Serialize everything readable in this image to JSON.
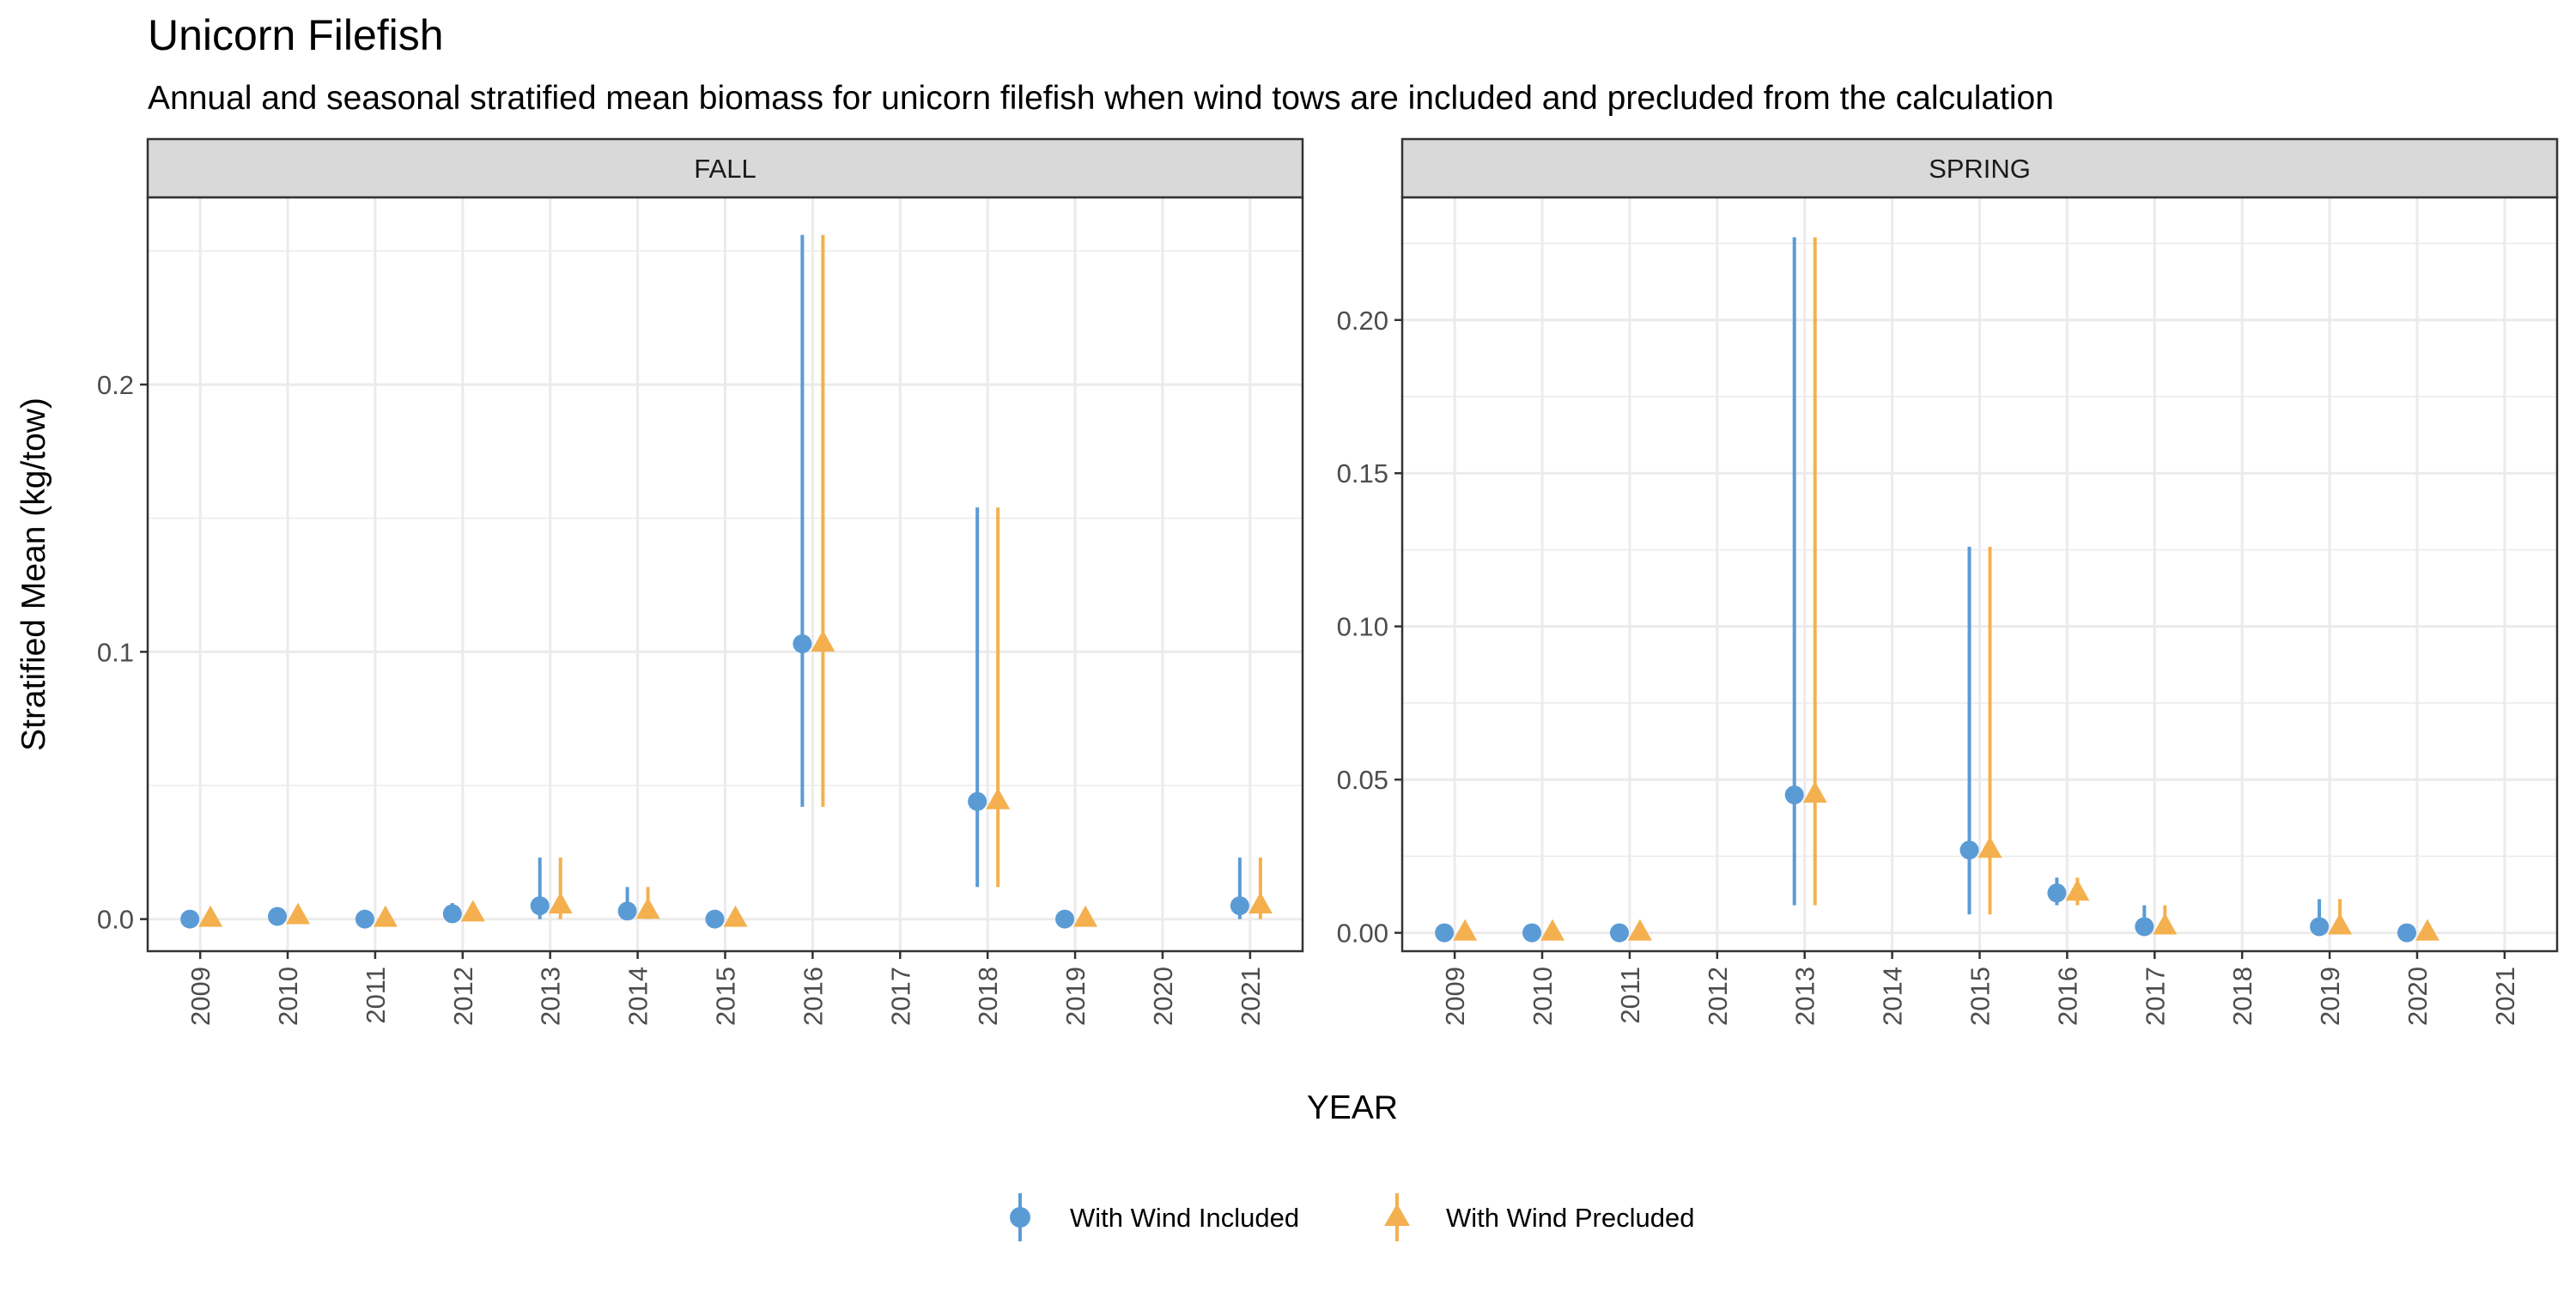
{
  "colors": {
    "included": "#5B9BD5",
    "precluded": "#F4B04F",
    "strip_fill": "#D9D9D9",
    "grid": "#EBEBEB",
    "text": "#000000",
    "tick_text": "#4D4D4D"
  },
  "chart_data": {
    "type": "scatter",
    "title": "Unicorn Filefish",
    "subtitle": "Annual and seasonal stratified mean biomass for unicorn filefish when wind tows are included and precluded from the calculation",
    "xlabel": "YEAR",
    "ylabel": "Stratified Mean (kg/tow)",
    "legend_position": "bottom",
    "legend": [
      {
        "key": "included",
        "label": "With Wind Included",
        "marker": "circle"
      },
      {
        "key": "precluded",
        "label": "With Wind Precluded",
        "marker": "triangle"
      }
    ],
    "panels": [
      {
        "name": "FALL",
        "categories": [
          "2009",
          "2010",
          "2011",
          "2012",
          "2013",
          "2014",
          "2015",
          "2016",
          "2017",
          "2018",
          "2019",
          "2020",
          "2021"
        ],
        "ylim": [
          -0.012,
          0.27
        ],
        "yticks": [
          0.0,
          0.1,
          0.2
        ],
        "ytick_labels": [
          "0.0",
          "0.1",
          "0.2"
        ],
        "series": [
          {
            "key": "included",
            "name": "With Wind Included",
            "points": [
              {
                "x": "2009",
                "y": 0.0,
                "lo": 0.0,
                "hi": 0.0
              },
              {
                "x": "2010",
                "y": 0.001,
                "lo": 0.0,
                "hi": 0.002
              },
              {
                "x": "2011",
                "y": 0.0,
                "lo": 0.0,
                "hi": 0.0
              },
              {
                "x": "2012",
                "y": 0.002,
                "lo": 0.0,
                "hi": 0.006
              },
              {
                "x": "2013",
                "y": 0.005,
                "lo": 0.0,
                "hi": 0.023
              },
              {
                "x": "2014",
                "y": 0.003,
                "lo": 0.0,
                "hi": 0.012
              },
              {
                "x": "2015",
                "y": 0.0,
                "lo": 0.0,
                "hi": 0.0
              },
              {
                "x": "2016",
                "y": 0.103,
                "lo": 0.042,
                "hi": 0.256
              },
              {
                "x": "2018",
                "y": 0.044,
                "lo": 0.012,
                "hi": 0.154
              },
              {
                "x": "2019",
                "y": 0.0,
                "lo": 0.0,
                "hi": 0.0
              },
              {
                "x": "2021",
                "y": 0.005,
                "lo": 0.0,
                "hi": 0.023
              }
            ]
          },
          {
            "key": "precluded",
            "name": "With Wind Precluded",
            "points": [
              {
                "x": "2009",
                "y": 0.0,
                "lo": 0.0,
                "hi": 0.0
              },
              {
                "x": "2010",
                "y": 0.001,
                "lo": 0.0,
                "hi": 0.002
              },
              {
                "x": "2011",
                "y": 0.0,
                "lo": 0.0,
                "hi": 0.0
              },
              {
                "x": "2012",
                "y": 0.002,
                "lo": 0.0,
                "hi": 0.006
              },
              {
                "x": "2013",
                "y": 0.005,
                "lo": 0.0,
                "hi": 0.023
              },
              {
                "x": "2014",
                "y": 0.003,
                "lo": 0.0,
                "hi": 0.012
              },
              {
                "x": "2015",
                "y": 0.0,
                "lo": 0.0,
                "hi": 0.0
              },
              {
                "x": "2016",
                "y": 0.103,
                "lo": 0.042,
                "hi": 0.256
              },
              {
                "x": "2018",
                "y": 0.044,
                "lo": 0.012,
                "hi": 0.154
              },
              {
                "x": "2019",
                "y": 0.0,
                "lo": 0.0,
                "hi": 0.0
              },
              {
                "x": "2021",
                "y": 0.005,
                "lo": 0.0,
                "hi": 0.023
              }
            ]
          }
        ]
      },
      {
        "name": "SPRING",
        "categories": [
          "2009",
          "2010",
          "2011",
          "2012",
          "2013",
          "2014",
          "2015",
          "2016",
          "2017",
          "2018",
          "2019",
          "2020",
          "2021"
        ],
        "ylim": [
          -0.006,
          0.24
        ],
        "yticks": [
          0.0,
          0.05,
          0.1,
          0.15,
          0.2
        ],
        "ytick_labels": [
          "0.00",
          "0.05",
          "0.10",
          "0.15",
          "0.20"
        ],
        "series": [
          {
            "key": "included",
            "name": "With Wind Included",
            "points": [
              {
                "x": "2009",
                "y": 0.0,
                "lo": 0.0,
                "hi": 0.0
              },
              {
                "x": "2010",
                "y": 0.0,
                "lo": 0.0,
                "hi": 0.0
              },
              {
                "x": "2011",
                "y": 0.0,
                "lo": 0.0,
                "hi": 0.0
              },
              {
                "x": "2013",
                "y": 0.045,
                "lo": 0.009,
                "hi": 0.227
              },
              {
                "x": "2015",
                "y": 0.027,
                "lo": 0.006,
                "hi": 0.126
              },
              {
                "x": "2016",
                "y": 0.013,
                "lo": 0.009,
                "hi": 0.018
              },
              {
                "x": "2017",
                "y": 0.002,
                "lo": 0.0,
                "hi": 0.009
              },
              {
                "x": "2019",
                "y": 0.002,
                "lo": 0.0,
                "hi": 0.011
              },
              {
                "x": "2020",
                "y": 0.0,
                "lo": 0.0,
                "hi": 0.0
              }
            ]
          },
          {
            "key": "precluded",
            "name": "With Wind Precluded",
            "points": [
              {
                "x": "2009",
                "y": 0.0,
                "lo": 0.0,
                "hi": 0.0
              },
              {
                "x": "2010",
                "y": 0.0,
                "lo": 0.0,
                "hi": 0.0
              },
              {
                "x": "2011",
                "y": 0.0,
                "lo": 0.0,
                "hi": 0.0
              },
              {
                "x": "2013",
                "y": 0.045,
                "lo": 0.009,
                "hi": 0.227
              },
              {
                "x": "2015",
                "y": 0.027,
                "lo": 0.006,
                "hi": 0.126
              },
              {
                "x": "2016",
                "y": 0.013,
                "lo": 0.009,
                "hi": 0.018
              },
              {
                "x": "2017",
                "y": 0.002,
                "lo": 0.0,
                "hi": 0.009
              },
              {
                "x": "2019",
                "y": 0.002,
                "lo": 0.0,
                "hi": 0.011
              },
              {
                "x": "2020",
                "y": 0.0,
                "lo": 0.0,
                "hi": 0.0
              }
            ]
          }
        ]
      }
    ]
  }
}
